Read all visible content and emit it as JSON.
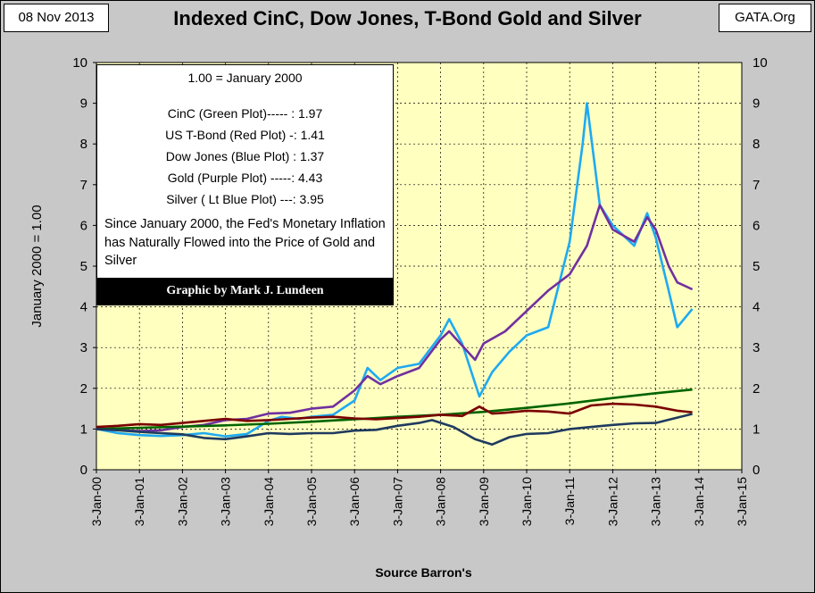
{
  "date_stamp": "08 Nov 2013",
  "source_tag": "GATA.Org",
  "legend": {
    "base": "1.00 = January 2000",
    "entries": [
      "CinC (Green Plot)----- : 1.97",
      "US T-Bond (Red Plot) -: 1.41",
      "Dow Jones (Blue Plot) : 1.37",
      "Gold (Purple Plot) -----: 4.43",
      "Silver ( Lt Blue Plot) ---: 3.95"
    ],
    "note": "Since January 2000, the Fed's Monetary Inflation has Naturally Flowed into the Price of Gold and Silver",
    "credit": "Graphic by Mark J. Lundeen"
  },
  "colors": {
    "plot_bg": "#ffffc0",
    "cinc": "#006400",
    "tbond": "#7b0000",
    "dow": "#1f3a5f",
    "gold": "#7030a0",
    "silver": "#1eaaf1"
  },
  "chart_data": {
    "type": "line",
    "title": "Indexed CinC, Dow Jones, T-Bond Gold and Silver",
    "xlabel": "Source Barron's",
    "ylabel": "January 2000 = 1.00",
    "xlim": [
      2000,
      2015
    ],
    "ylim": [
      0,
      10
    ],
    "x_ticks": [
      "3-Jan-00",
      "3-Jan-01",
      "3-Jan-02",
      "3-Jan-03",
      "3-Jan-04",
      "3-Jan-05",
      "3-Jan-06",
      "3-Jan-07",
      "3-Jan-08",
      "3-Jan-09",
      "3-Jan-10",
      "3-Jan-11",
      "3-Jan-12",
      "3-Jan-13",
      "3-Jan-14",
      "3-Jan-15"
    ],
    "y_ticks": [
      "0",
      "1",
      "2",
      "3",
      "4",
      "5",
      "6",
      "7",
      "8",
      "9",
      "10"
    ],
    "grid": true,
    "series": [
      {
        "key": "cinc",
        "x": [
          2000,
          2001,
          2002,
          2003,
          2004,
          2005,
          2006,
          2007,
          2008,
          2009,
          2010,
          2011,
          2012,
          2013,
          2013.85
        ],
        "y": [
          1.0,
          1.03,
          1.06,
          1.09,
          1.13,
          1.18,
          1.24,
          1.3,
          1.35,
          1.42,
          1.52,
          1.63,
          1.76,
          1.88,
          1.97
        ]
      },
      {
        "key": "tbond",
        "x": [
          2000,
          2000.5,
          2001,
          2001.5,
          2002,
          2002.5,
          2003,
          2003.5,
          2004,
          2004.5,
          2005,
          2005.5,
          2006,
          2006.5,
          2007,
          2007.5,
          2008,
          2008.5,
          2008.9,
          2009.2,
          2009.5,
          2010,
          2010.5,
          2011,
          2011.5,
          2012,
          2012.5,
          2013,
          2013.5,
          2013.85
        ],
        "y": [
          1.05,
          1.08,
          1.12,
          1.1,
          1.15,
          1.2,
          1.25,
          1.2,
          1.22,
          1.25,
          1.28,
          1.3,
          1.26,
          1.24,
          1.27,
          1.3,
          1.35,
          1.32,
          1.55,
          1.38,
          1.4,
          1.45,
          1.43,
          1.38,
          1.58,
          1.62,
          1.6,
          1.55,
          1.45,
          1.41
        ]
      },
      {
        "key": "dow",
        "x": [
          2000,
          2000.5,
          2001,
          2001.5,
          2002,
          2002.5,
          2003,
          2003.5,
          2004,
          2004.5,
          2005,
          2005.5,
          2006,
          2006.5,
          2007,
          2007.5,
          2007.8,
          2008.3,
          2008.8,
          2009.2,
          2009.6,
          2010,
          2010.5,
          2011,
          2011.5,
          2012,
          2012.5,
          2013,
          2013.5,
          2013.85
        ],
        "y": [
          1.0,
          0.97,
          0.93,
          0.9,
          0.87,
          0.78,
          0.75,
          0.82,
          0.9,
          0.88,
          0.9,
          0.9,
          0.96,
          0.98,
          1.08,
          1.15,
          1.22,
          1.05,
          0.75,
          0.62,
          0.8,
          0.88,
          0.9,
          1.0,
          1.05,
          1.1,
          1.14,
          1.15,
          1.28,
          1.37
        ]
      },
      {
        "key": "gold",
        "x": [
          2000,
          2000.5,
          2001,
          2001.5,
          2002,
          2002.5,
          2003,
          2003.5,
          2004,
          2004.5,
          2005,
          2005.5,
          2006,
          2006.3,
          2006.6,
          2007,
          2007.5,
          2008,
          2008.2,
          2008.8,
          2009,
          2009.5,
          2010,
          2010.5,
          2011,
          2011.4,
          2011.7,
          2012,
          2012.5,
          2012.8,
          2013,
          2013.3,
          2013.5,
          2013.85
        ],
        "y": [
          1.0,
          0.98,
          0.95,
          0.97,
          1.05,
          1.1,
          1.22,
          1.25,
          1.38,
          1.4,
          1.5,
          1.55,
          1.95,
          2.3,
          2.1,
          2.3,
          2.5,
          3.2,
          3.4,
          2.7,
          3.1,
          3.4,
          3.9,
          4.4,
          4.8,
          5.5,
          6.5,
          5.9,
          5.6,
          6.2,
          5.9,
          5.0,
          4.6,
          4.43
        ]
      },
      {
        "key": "silver",
        "x": [
          2000,
          2000.5,
          2001,
          2001.5,
          2002,
          2002.5,
          2003,
          2003.5,
          2004,
          2004.3,
          2004.7,
          2005,
          2005.5,
          2006,
          2006.3,
          2006.6,
          2007,
          2007.5,
          2008,
          2008.2,
          2008.5,
          2008.9,
          2009.2,
          2009.6,
          2010,
          2010.5,
          2011,
          2011.3,
          2011.4,
          2011.7,
          2012,
          2012.5,
          2012.8,
          2013,
          2013.3,
          2013.5,
          2013.85
        ],
        "y": [
          1.0,
          0.9,
          0.85,
          0.83,
          0.85,
          0.9,
          0.82,
          0.88,
          1.2,
          1.3,
          1.25,
          1.3,
          1.35,
          1.7,
          2.5,
          2.2,
          2.5,
          2.6,
          3.3,
          3.7,
          3.1,
          1.8,
          2.4,
          2.9,
          3.3,
          3.5,
          5.6,
          8.0,
          9.0,
          6.5,
          6.0,
          5.5,
          6.3,
          5.7,
          4.4,
          3.5,
          3.95
        ]
      }
    ]
  }
}
